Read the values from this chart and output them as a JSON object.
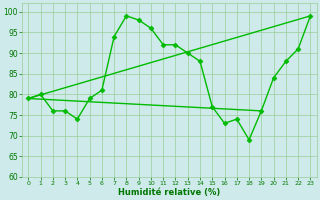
{
  "line_data": {
    "x": [
      0,
      1,
      2,
      3,
      4,
      5,
      6,
      7,
      8,
      9,
      10,
      11,
      12,
      13,
      14,
      15,
      16,
      17,
      18,
      19,
      20,
      21,
      22,
      23
    ],
    "y": [
      79,
      80,
      76,
      76,
      74,
      79,
      81,
      94,
      99,
      98,
      96,
      92,
      92,
      90,
      88,
      77,
      73,
      74,
      69,
      76,
      84,
      88,
      91,
      99
    ],
    "color": "#00bb00",
    "marker": "D",
    "markersize": 2.5,
    "linewidth": 1.0
  },
  "line_trend1": {
    "x": [
      0,
      23
    ],
    "y": [
      79,
      99
    ],
    "color": "#00bb00",
    "linewidth": 1.0
  },
  "line_trend2": {
    "x": [
      0,
      19
    ],
    "y": [
      79,
      76
    ],
    "color": "#00bb00",
    "linewidth": 1.0
  },
  "xlabel": "Humidité relative (%)",
  "xlim": [
    -0.5,
    23.5
  ],
  "ylim": [
    60,
    102
  ],
  "yticks": [
    60,
    65,
    70,
    75,
    80,
    85,
    90,
    95,
    100
  ],
  "xticks": [
    0,
    1,
    2,
    3,
    4,
    5,
    6,
    7,
    8,
    9,
    10,
    11,
    12,
    13,
    14,
    15,
    16,
    17,
    18,
    19,
    20,
    21,
    22,
    23
  ],
  "bg_color": "#ceeaea",
  "grid_color": "#99cc99",
  "tick_color": "#007700",
  "label_color": "#007700"
}
